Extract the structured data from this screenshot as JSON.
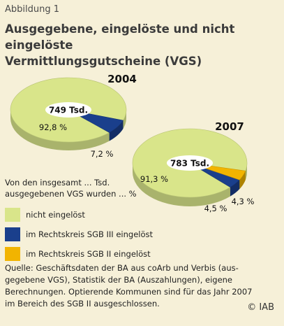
{
  "figure_label": "Abbildung 1",
  "title_line1": "Ausgegebene, eingelöste und nicht eingelöste",
  "title_line2": "Vermittlungsgutscheine (VGS)",
  "intro_line1": "Von den insgesamt ... Tsd.",
  "intro_line2": "ausgegebenen VGS wurden ... %",
  "source_line1": "Quelle: Geschäftsdaten der BA aus coArb und Verbis (aus-",
  "source_line2": "gegebene VGS), Statistik der BA (Auszahlungen), eigene",
  "source_line3": "Berechnungen. Optierende Kommunen sind für das Jahr 2007",
  "source_line4": "im Bereich des SGB II ausgeschlossen.",
  "copyright": "© IAB",
  "colors": {
    "nicht_eingeloest": "#d9e58a",
    "sgb3": "#1a3f8c",
    "sgb2": "#f2b400"
  },
  "chart_data": {
    "type": "pie",
    "legend_position": "bottom-left",
    "legend": [
      {
        "label": "nicht eingelöst",
        "color": "#d9e58a"
      },
      {
        "label": "im Rechtskreis SGB III eingelöst",
        "color": "#1a3f8c"
      },
      {
        "label": "im Rechtskreis SGB II eingelöst",
        "color": "#f2b400"
      }
    ],
    "charts": [
      {
        "year": "2004",
        "total_label": "749 Tsd.",
        "total": 749,
        "slices": [
          {
            "series": "nicht eingelöst",
            "value": 92.8,
            "label": "92,8 %"
          },
          {
            "series": "im Rechtskreis SGB III eingelöst",
            "value": 7.2,
            "label": "7,2 %"
          }
        ]
      },
      {
        "year": "2007",
        "total_label": "783 Tsd.",
        "total": 783,
        "slices": [
          {
            "series": "nicht eingelöst",
            "value": 91.3,
            "label": "91,3 %"
          },
          {
            "series": "im Rechtskreis SGB III eingelöst",
            "value": 4.3,
            "label": "4,3 %"
          },
          {
            "series": "im Rechtskreis SGB II eingelöst",
            "value": 4.5,
            "label": "4,5 %"
          }
        ]
      }
    ]
  }
}
